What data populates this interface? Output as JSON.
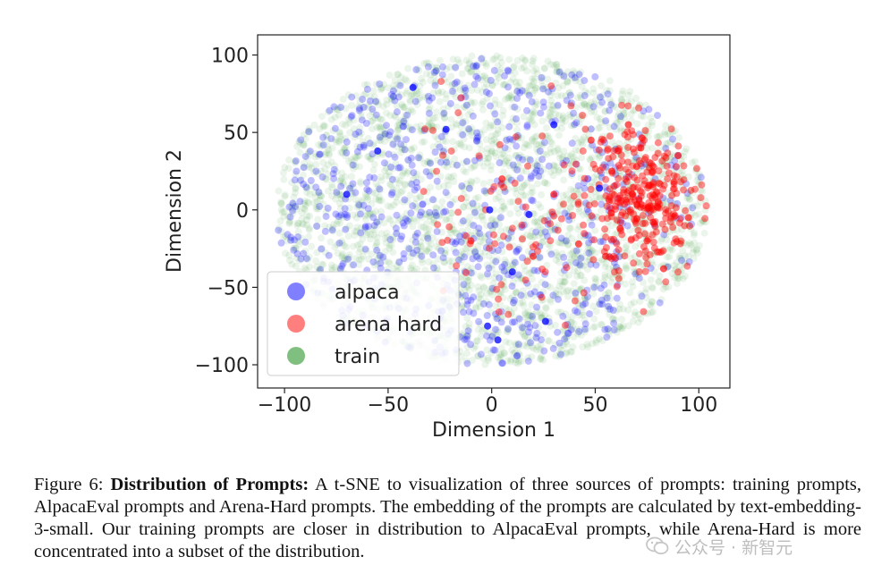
{
  "chart_data": {
    "type": "scatter",
    "xlabel": "Dimension 1",
    "ylabel": "Dimension 2",
    "xlim": [
      -113,
      115
    ],
    "ylim": [
      -115,
      113
    ],
    "xticks": [
      -100,
      -50,
      0,
      50,
      100
    ],
    "yticks": [
      -100,
      -50,
      0,
      50,
      100
    ],
    "xtick_labels": [
      "−100",
      "−50",
      "0",
      "50",
      "100"
    ],
    "ytick_labels": [
      "−100",
      "−50",
      "0",
      "50",
      "100"
    ],
    "grid": false,
    "legend_position": "lower-left",
    "series": [
      {
        "name": "alpaca",
        "color": "#0000ff",
        "alpha": 0.25
      },
      {
        "name": "arena hard",
        "color": "#ff0000",
        "alpha": 0.45
      },
      {
        "name": "train",
        "color": "#008000",
        "alpha": 0.08
      }
    ],
    "highlighted_points": {
      "alpaca": [
        [
          -38,
          79
        ],
        [
          -2,
          -75
        ],
        [
          3,
          -84
        ],
        [
          -1,
          0
        ],
        [
          26,
          -72
        ],
        [
          52,
          14
        ],
        [
          -22,
          52
        ],
        [
          18,
          -3
        ],
        [
          -55,
          38
        ],
        [
          30,
          55
        ],
        [
          -70,
          10
        ],
        [
          10,
          -40
        ]
      ],
      "arena hard": [
        [
          72,
          40
        ],
        [
          62,
          -12
        ],
        [
          80,
          2
        ],
        [
          58,
          25
        ],
        [
          88,
          18
        ],
        [
          75,
          -20
        ],
        [
          48,
          45
        ],
        [
          95,
          -5
        ],
        [
          68,
          10
        ],
        [
          83,
          -38
        ],
        [
          55,
          -30
        ],
        [
          90,
          35
        ],
        [
          30,
          10
        ],
        [
          5,
          20
        ],
        [
          -10,
          -20
        ],
        [
          20,
          -30
        ],
        [
          42,
          -22
        ],
        [
          66,
          55
        ],
        [
          78,
          -8
        ],
        [
          70,
          28
        ]
      ]
    }
  },
  "caption": {
    "label": "Figure 6:",
    "bold": "Distribution of Prompts:",
    "text": "A t-SNE to visualization of three sources of prompts: training prompts, AlpacaEval prompts and Arena-Hard prompts. The embedding of the prompts are calculated by text-embedding-3-small. Our training prompts are closer in distribution to AlpacaEval prompts, while Arena-Hard is more concentrated into a subset of the distribution."
  },
  "watermark": {
    "text": "公众号 · 新智元",
    "icon": "wechat-icon"
  }
}
